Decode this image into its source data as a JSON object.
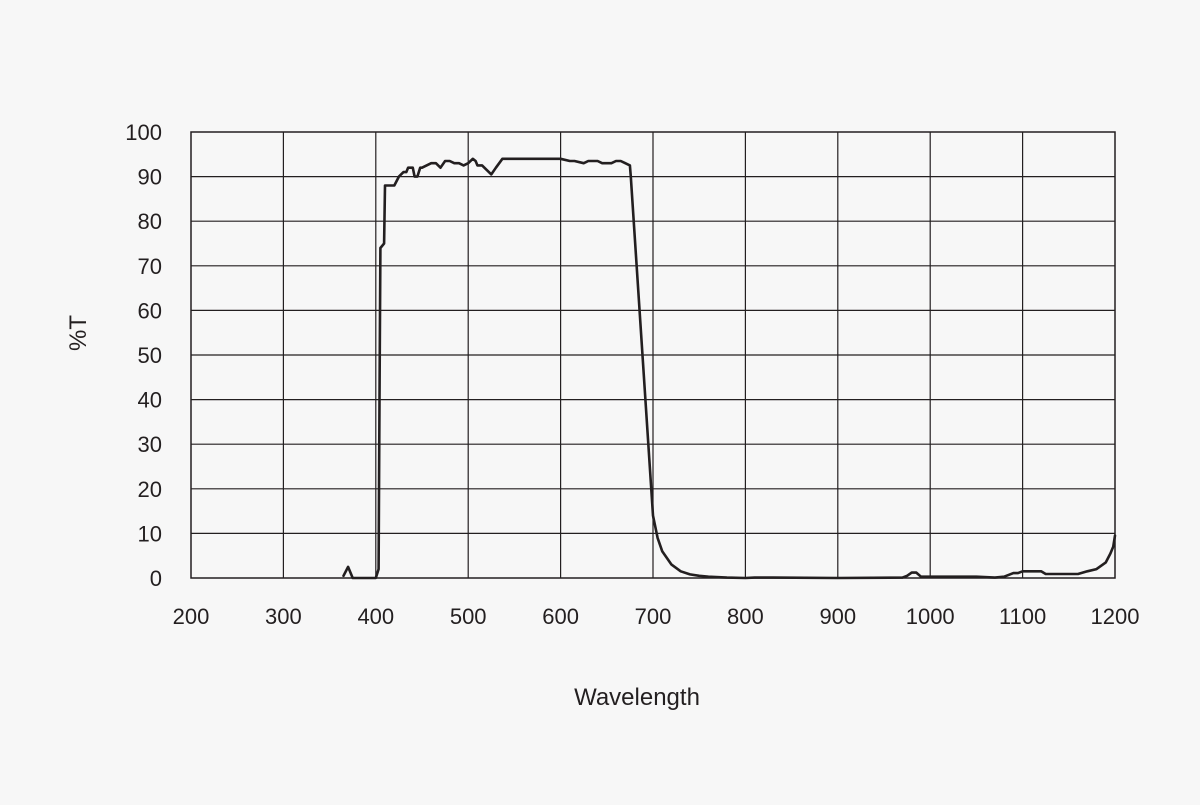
{
  "chart_data": {
    "type": "line",
    "title": "",
    "xlabel": "Wavelength",
    "ylabel": "%T",
    "xlim": [
      200,
      1200
    ],
    "ylim": [
      0,
      100
    ],
    "x_ticks": [
      "200",
      "300",
      "400",
      "500",
      "600",
      "700",
      "800",
      "900",
      "1000",
      "1100",
      "1200"
    ],
    "y_ticks": [
      "0",
      "10",
      "20",
      "30",
      "40",
      "50",
      "60",
      "70",
      "80",
      "90",
      "100"
    ],
    "grid": true,
    "legend": "none",
    "colors": {
      "line": "#231f20",
      "grid": "#231f20",
      "background": "#f7f7f7"
    },
    "series": [
      {
        "x": [
          365,
          370,
          375,
          385,
          395,
          400,
          403,
          404,
          405,
          409,
          410,
          420,
          425,
          430,
          433,
          435,
          440,
          442,
          445,
          448,
          450,
          460,
          465,
          470,
          475,
          480,
          485,
          490,
          495,
          500,
          505,
          508,
          510,
          515,
          520,
          525,
          530,
          537,
          550,
          600,
          610,
          615,
          625,
          630,
          640,
          645,
          655,
          660,
          665,
          670,
          675,
          676,
          700,
          705,
          710,
          720,
          730,
          740,
          750,
          760,
          780,
          800,
          810,
          830,
          900,
          970,
          975,
          980,
          985,
          990,
          995,
          1000,
          1050,
          1070,
          1080,
          1090,
          1095,
          1100,
          1110,
          1120,
          1125,
          1160,
          1170,
          1180,
          1190,
          1195,
          1198,
          1200
        ],
        "y": [
          0.5,
          2.5,
          0,
          0,
          0,
          0,
          2,
          40,
          74,
          75,
          88,
          88,
          90,
          91,
          91,
          92,
          92,
          90,
          90,
          92,
          92,
          93,
          93,
          92,
          93.5,
          93.5,
          93,
          93,
          92.5,
          93,
          94,
          93.5,
          92.5,
          92.5,
          91.5,
          90.5,
          92,
          94,
          94,
          94,
          93.5,
          93.5,
          93,
          93.5,
          93.5,
          93,
          93,
          93.5,
          93.5,
          93,
          92.5,
          90,
          14,
          9,
          6,
          3,
          1.5,
          0.8,
          0.5,
          0.3,
          0.1,
          0,
          0.1,
          0.1,
          0,
          0.1,
          0.5,
          1.2,
          1.2,
          0.3,
          0.3,
          0.3,
          0.3,
          0.1,
          0.3,
          1.1,
          1.1,
          1.5,
          1.5,
          1.5,
          0.9,
          0.9,
          1.5,
          2,
          3.5,
          5.5,
          7,
          9.5
        ]
      }
    ]
  }
}
